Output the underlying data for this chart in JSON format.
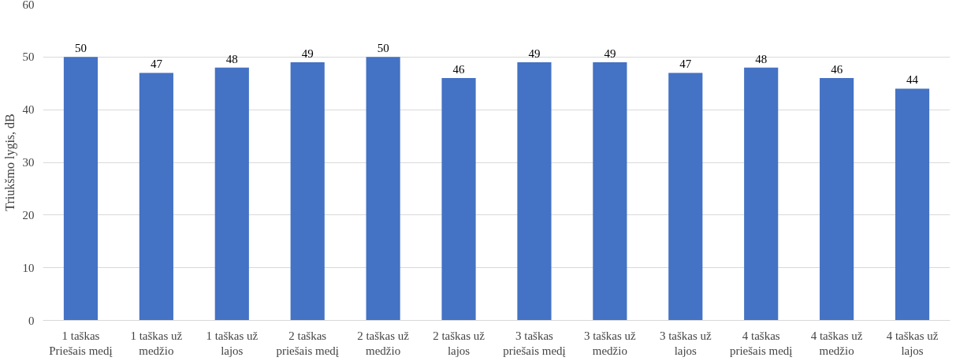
{
  "chart_data": {
    "type": "bar",
    "ylabel": "Triukšmo lygis, dB",
    "categories": [
      "1 taškas Priešais medį",
      "1 taškas už medžio",
      "1 taškas už lajos",
      "2 taškas priešais medį",
      "2 taškas už medžio",
      "2 taškas už lajos",
      "3 taškas priešais medį",
      "3 taškas už medžio",
      "3 taškas už lajos",
      "4 taškas priešais medį",
      "4 taškas už medžio",
      "4 taškas už lajos"
    ],
    "values": [
      50,
      47,
      48,
      49,
      50,
      46,
      49,
      49,
      47,
      48,
      46,
      44
    ],
    "color": "#4472c4",
    "ylim": [
      0,
      60
    ],
    "yticks": [
      0,
      10,
      20,
      30,
      40,
      50,
      60
    ],
    "grid": "y",
    "data_labels": true
  }
}
